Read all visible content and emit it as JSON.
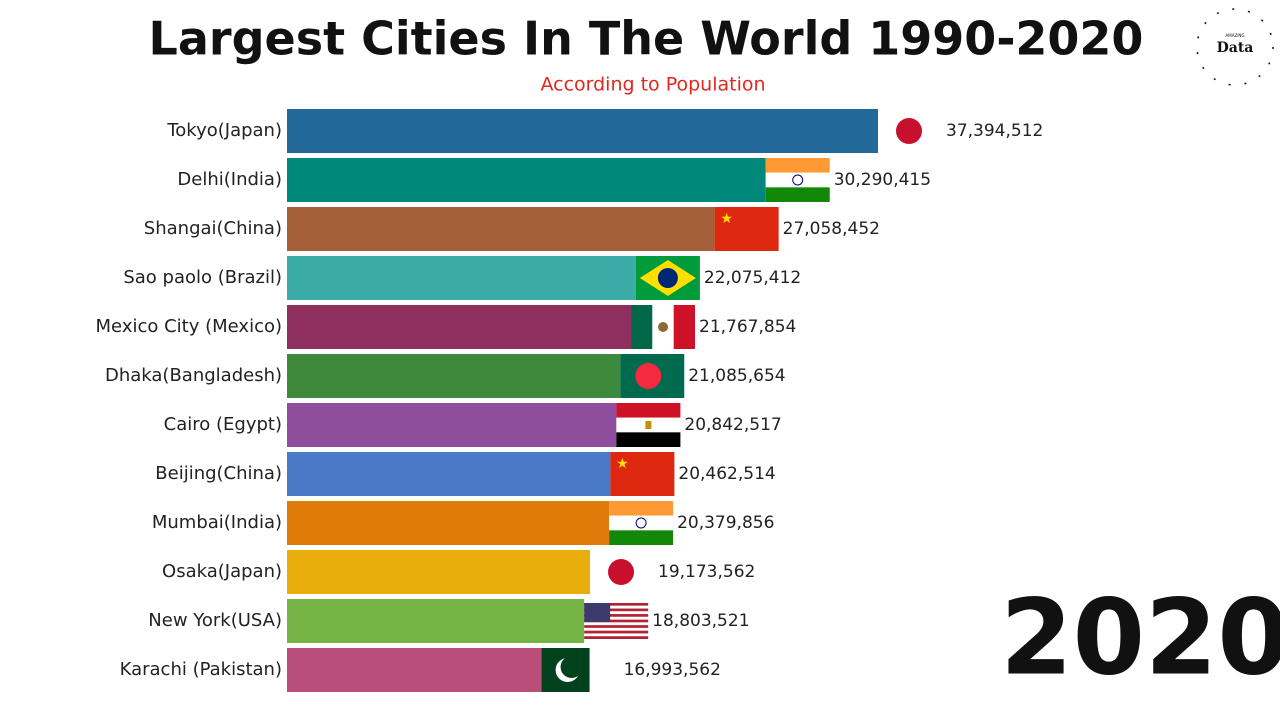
{
  "chart_data": {
    "type": "bar",
    "orientation": "horizontal",
    "title": "Largest Cities In The World 1990-2020",
    "subtitle": "According to Population",
    "year": "2020",
    "logo_small": "AMAZING",
    "logo": "Data",
    "categories": [
      "Tokyo(Japan)",
      "Delhi(India)",
      "Shangai(China)",
      "Sao paolo (Brazil)",
      "Mexico City (Mexico)",
      "Dhaka(Bangladesh)",
      "Cairo (Egypt)",
      "Beijing(China)",
      "Mumbai(India)",
      "Osaka(Japan)",
      "New York(USA)",
      "Karachi (Pakistan)"
    ],
    "values": [
      37394512,
      30290415,
      27058452,
      22075412,
      21767854,
      21085654,
      20842517,
      20462514,
      20379856,
      19173562,
      18803521,
      16993562
    ],
    "value_labels": [
      "37,394,512",
      "30,290,415",
      "27,058,452",
      "22,075,412",
      "21,767,854",
      "21,085,654",
      "20,842,517",
      "20,462,514",
      "20,379,856",
      "19,173,562",
      "18,803,521",
      "16,993,562"
    ],
    "colors": [
      "#22699a",
      "#00897b",
      "#a5603a",
      "#3aaba6",
      "#8e2f5f",
      "#3d8a3c",
      "#8e4e9b",
      "#4a79c8",
      "#e07b0a",
      "#e9ad0c",
      "#74b546",
      "#b84f7a"
    ]
  }
}
